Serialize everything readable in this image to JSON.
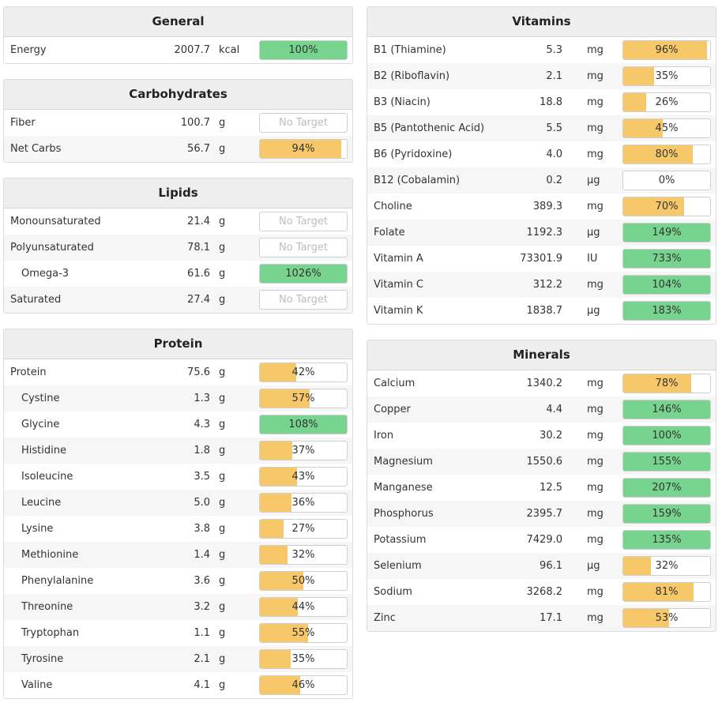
{
  "colors": {
    "green": "#77d48e",
    "yellow": "#f7c86a"
  },
  "left": [
    {
      "title": "General",
      "rows": [
        {
          "name": "Energy",
          "amount": "2007.7",
          "unit": "kcal",
          "label": "100%",
          "fill": 1.0,
          "color": "green"
        }
      ]
    },
    {
      "title": "Carbohydrates",
      "rows": [
        {
          "name": "Fiber",
          "amount": "100.7",
          "unit": "g",
          "label": "No Target",
          "fill": 0,
          "color": "none"
        },
        {
          "name": "Net Carbs",
          "amount": "56.7",
          "unit": "g",
          "label": "94%",
          "fill": 0.94,
          "color": "yellow"
        }
      ]
    },
    {
      "title": "Lipids",
      "rows": [
        {
          "name": "Monounsaturated",
          "amount": "21.4",
          "unit": "g",
          "label": "No Target",
          "fill": 0,
          "color": "none"
        },
        {
          "name": "Polyunsaturated",
          "amount": "78.1",
          "unit": "g",
          "label": "No Target",
          "fill": 0,
          "color": "none"
        },
        {
          "name": "Omega-3",
          "amount": "61.6",
          "unit": "g",
          "label": "1026%",
          "fill": 1.0,
          "color": "green",
          "indent": true
        },
        {
          "name": "Saturated",
          "amount": "27.4",
          "unit": "g",
          "label": "No Target",
          "fill": 0,
          "color": "none"
        }
      ]
    },
    {
      "title": "Protein",
      "rows": [
        {
          "name": "Protein",
          "amount": "75.6",
          "unit": "g",
          "label": "42%",
          "fill": 0.42,
          "color": "yellow"
        },
        {
          "name": "Cystine",
          "amount": "1.3",
          "unit": "g",
          "label": "57%",
          "fill": 0.57,
          "color": "yellow",
          "indent": true
        },
        {
          "name": "Glycine",
          "amount": "4.3",
          "unit": "g",
          "label": "108%",
          "fill": 1.0,
          "color": "green",
          "indent": true
        },
        {
          "name": "Histidine",
          "amount": "1.8",
          "unit": "g",
          "label": "37%",
          "fill": 0.37,
          "color": "yellow",
          "indent": true
        },
        {
          "name": "Isoleucine",
          "amount": "3.5",
          "unit": "g",
          "label": "43%",
          "fill": 0.43,
          "color": "yellow",
          "indent": true
        },
        {
          "name": "Leucine",
          "amount": "5.0",
          "unit": "g",
          "label": "36%",
          "fill": 0.36,
          "color": "yellow",
          "indent": true
        },
        {
          "name": "Lysine",
          "amount": "3.8",
          "unit": "g",
          "label": "27%",
          "fill": 0.27,
          "color": "yellow",
          "indent": true
        },
        {
          "name": "Methionine",
          "amount": "1.4",
          "unit": "g",
          "label": "32%",
          "fill": 0.32,
          "color": "yellow",
          "indent": true
        },
        {
          "name": "Phenylalanine",
          "amount": "3.6",
          "unit": "g",
          "label": "50%",
          "fill": 0.5,
          "color": "yellow",
          "indent": true
        },
        {
          "name": "Threonine",
          "amount": "3.2",
          "unit": "g",
          "label": "44%",
          "fill": 0.44,
          "color": "yellow",
          "indent": true
        },
        {
          "name": "Tryptophan",
          "amount": "1.1",
          "unit": "g",
          "label": "55%",
          "fill": 0.55,
          "color": "yellow",
          "indent": true
        },
        {
          "name": "Tyrosine",
          "amount": "2.1",
          "unit": "g",
          "label": "35%",
          "fill": 0.35,
          "color": "yellow",
          "indent": true
        },
        {
          "name": "Valine",
          "amount": "4.1",
          "unit": "g",
          "label": "46%",
          "fill": 0.46,
          "color": "yellow",
          "indent": true
        }
      ]
    }
  ],
  "right": [
    {
      "title": "Vitamins",
      "rows": [
        {
          "name": "B1 (Thiamine)",
          "amount": "5.3",
          "unit": "mg",
          "label": "96%",
          "fill": 0.96,
          "color": "yellow"
        },
        {
          "name": "B2 (Riboflavin)",
          "amount": "2.1",
          "unit": "mg",
          "label": "35%",
          "fill": 0.35,
          "color": "yellow"
        },
        {
          "name": "B3 (Niacin)",
          "amount": "18.8",
          "unit": "mg",
          "label": "26%",
          "fill": 0.26,
          "color": "yellow"
        },
        {
          "name": "B5 (Pantothenic Acid)",
          "amount": "5.5",
          "unit": "mg",
          "label": "45%",
          "fill": 0.45,
          "color": "yellow"
        },
        {
          "name": "B6 (Pyridoxine)",
          "amount": "4.0",
          "unit": "mg",
          "label": "80%",
          "fill": 0.8,
          "color": "yellow"
        },
        {
          "name": "B12 (Cobalamin)",
          "amount": "0.2",
          "unit": "µg",
          "label": "0%",
          "fill": 0,
          "color": "yellow"
        },
        {
          "name": "Choline",
          "amount": "389.3",
          "unit": "mg",
          "label": "70%",
          "fill": 0.7,
          "color": "yellow"
        },
        {
          "name": "Folate",
          "amount": "1192.3",
          "unit": "µg",
          "label": "149%",
          "fill": 1.0,
          "color": "green"
        },
        {
          "name": "Vitamin A",
          "amount": "73301.9",
          "unit": "IU",
          "label": "733%",
          "fill": 1.0,
          "color": "green"
        },
        {
          "name": "Vitamin C",
          "amount": "312.2",
          "unit": "mg",
          "label": "104%",
          "fill": 1.0,
          "color": "green"
        },
        {
          "name": "Vitamin K",
          "amount": "1838.7",
          "unit": "µg",
          "label": "183%",
          "fill": 1.0,
          "color": "green"
        }
      ]
    },
    {
      "title": "Minerals",
      "rows": [
        {
          "name": "Calcium",
          "amount": "1340.2",
          "unit": "mg",
          "label": "78%",
          "fill": 0.78,
          "color": "yellow"
        },
        {
          "name": "Copper",
          "amount": "4.4",
          "unit": "mg",
          "label": "146%",
          "fill": 1.0,
          "color": "green"
        },
        {
          "name": "Iron",
          "amount": "30.2",
          "unit": "mg",
          "label": "100%",
          "fill": 1.0,
          "color": "green"
        },
        {
          "name": "Magnesium",
          "amount": "1550.6",
          "unit": "mg",
          "label": "155%",
          "fill": 1.0,
          "color": "green"
        },
        {
          "name": "Manganese",
          "amount": "12.5",
          "unit": "mg",
          "label": "207%",
          "fill": 1.0,
          "color": "green"
        },
        {
          "name": "Phosphorus",
          "amount": "2395.7",
          "unit": "mg",
          "label": "159%",
          "fill": 1.0,
          "color": "green"
        },
        {
          "name": "Potassium",
          "amount": "7429.0",
          "unit": "mg",
          "label": "135%",
          "fill": 1.0,
          "color": "green"
        },
        {
          "name": "Selenium",
          "amount": "96.1",
          "unit": "µg",
          "label": "32%",
          "fill": 0.32,
          "color": "yellow"
        },
        {
          "name": "Sodium",
          "amount": "3268.2",
          "unit": "mg",
          "label": "81%",
          "fill": 0.81,
          "color": "yellow"
        },
        {
          "name": "Zinc",
          "amount": "17.1",
          "unit": "mg",
          "label": "53%",
          "fill": 0.53,
          "color": "yellow"
        }
      ]
    }
  ]
}
